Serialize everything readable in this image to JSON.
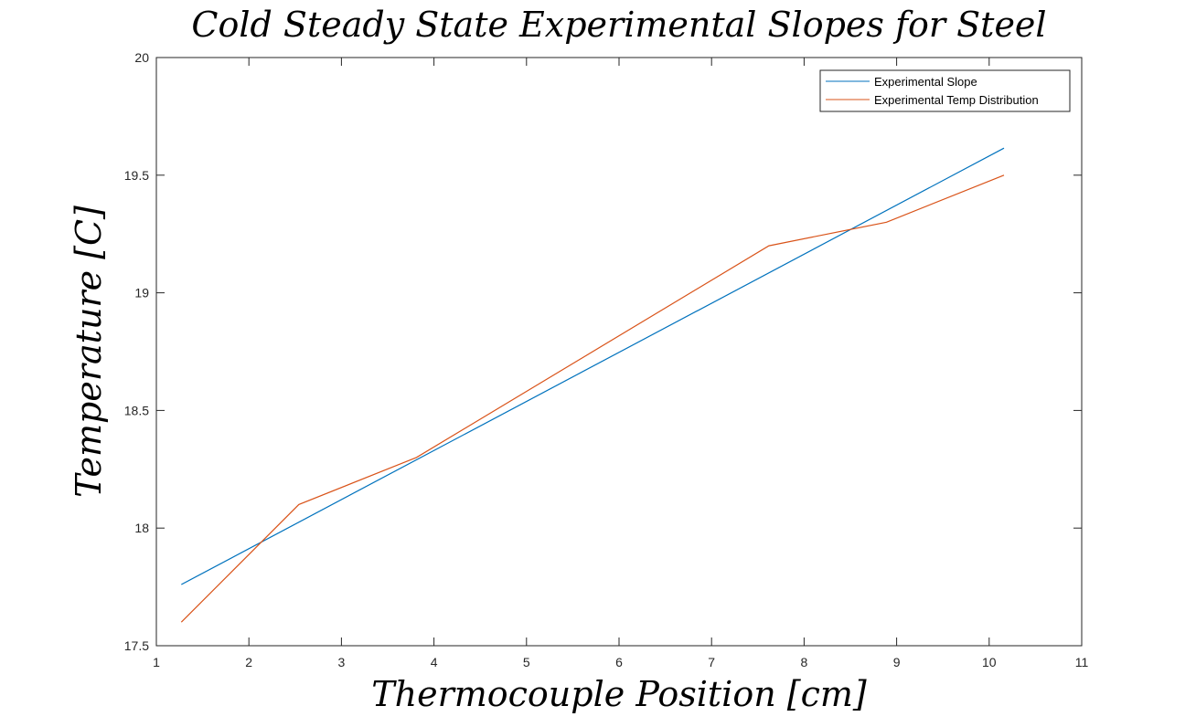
{
  "chart_data": {
    "type": "line",
    "title": "Cold Steady State Experimental Slopes for Steel",
    "xlabel": "Thermocouple Position [cm]",
    "ylabel": "Temperature [C]",
    "xlim": [
      1,
      11
    ],
    "ylim": [
      17.5,
      20
    ],
    "xticks": [
      "1",
      "2",
      "3",
      "4",
      "5",
      "6",
      "7",
      "8",
      "9",
      "10",
      "11"
    ],
    "yticks": [
      "17.5",
      "18",
      "18.5",
      "19",
      "19.5",
      "20"
    ],
    "grid": false,
    "legend_position": "top-right",
    "series": [
      {
        "name": "Experimental Slope",
        "color": "#0072BD",
        "x": [
          1.27,
          10.16
        ],
        "y": [
          17.76,
          19.615
        ]
      },
      {
        "name": "Experimental Temp Distribution",
        "color": "#D95319",
        "x": [
          1.27,
          2.54,
          3.81,
          7.62,
          8.89,
          10.16
        ],
        "y": [
          17.6,
          18.1,
          18.3,
          19.2,
          19.3,
          19.5
        ]
      }
    ]
  }
}
